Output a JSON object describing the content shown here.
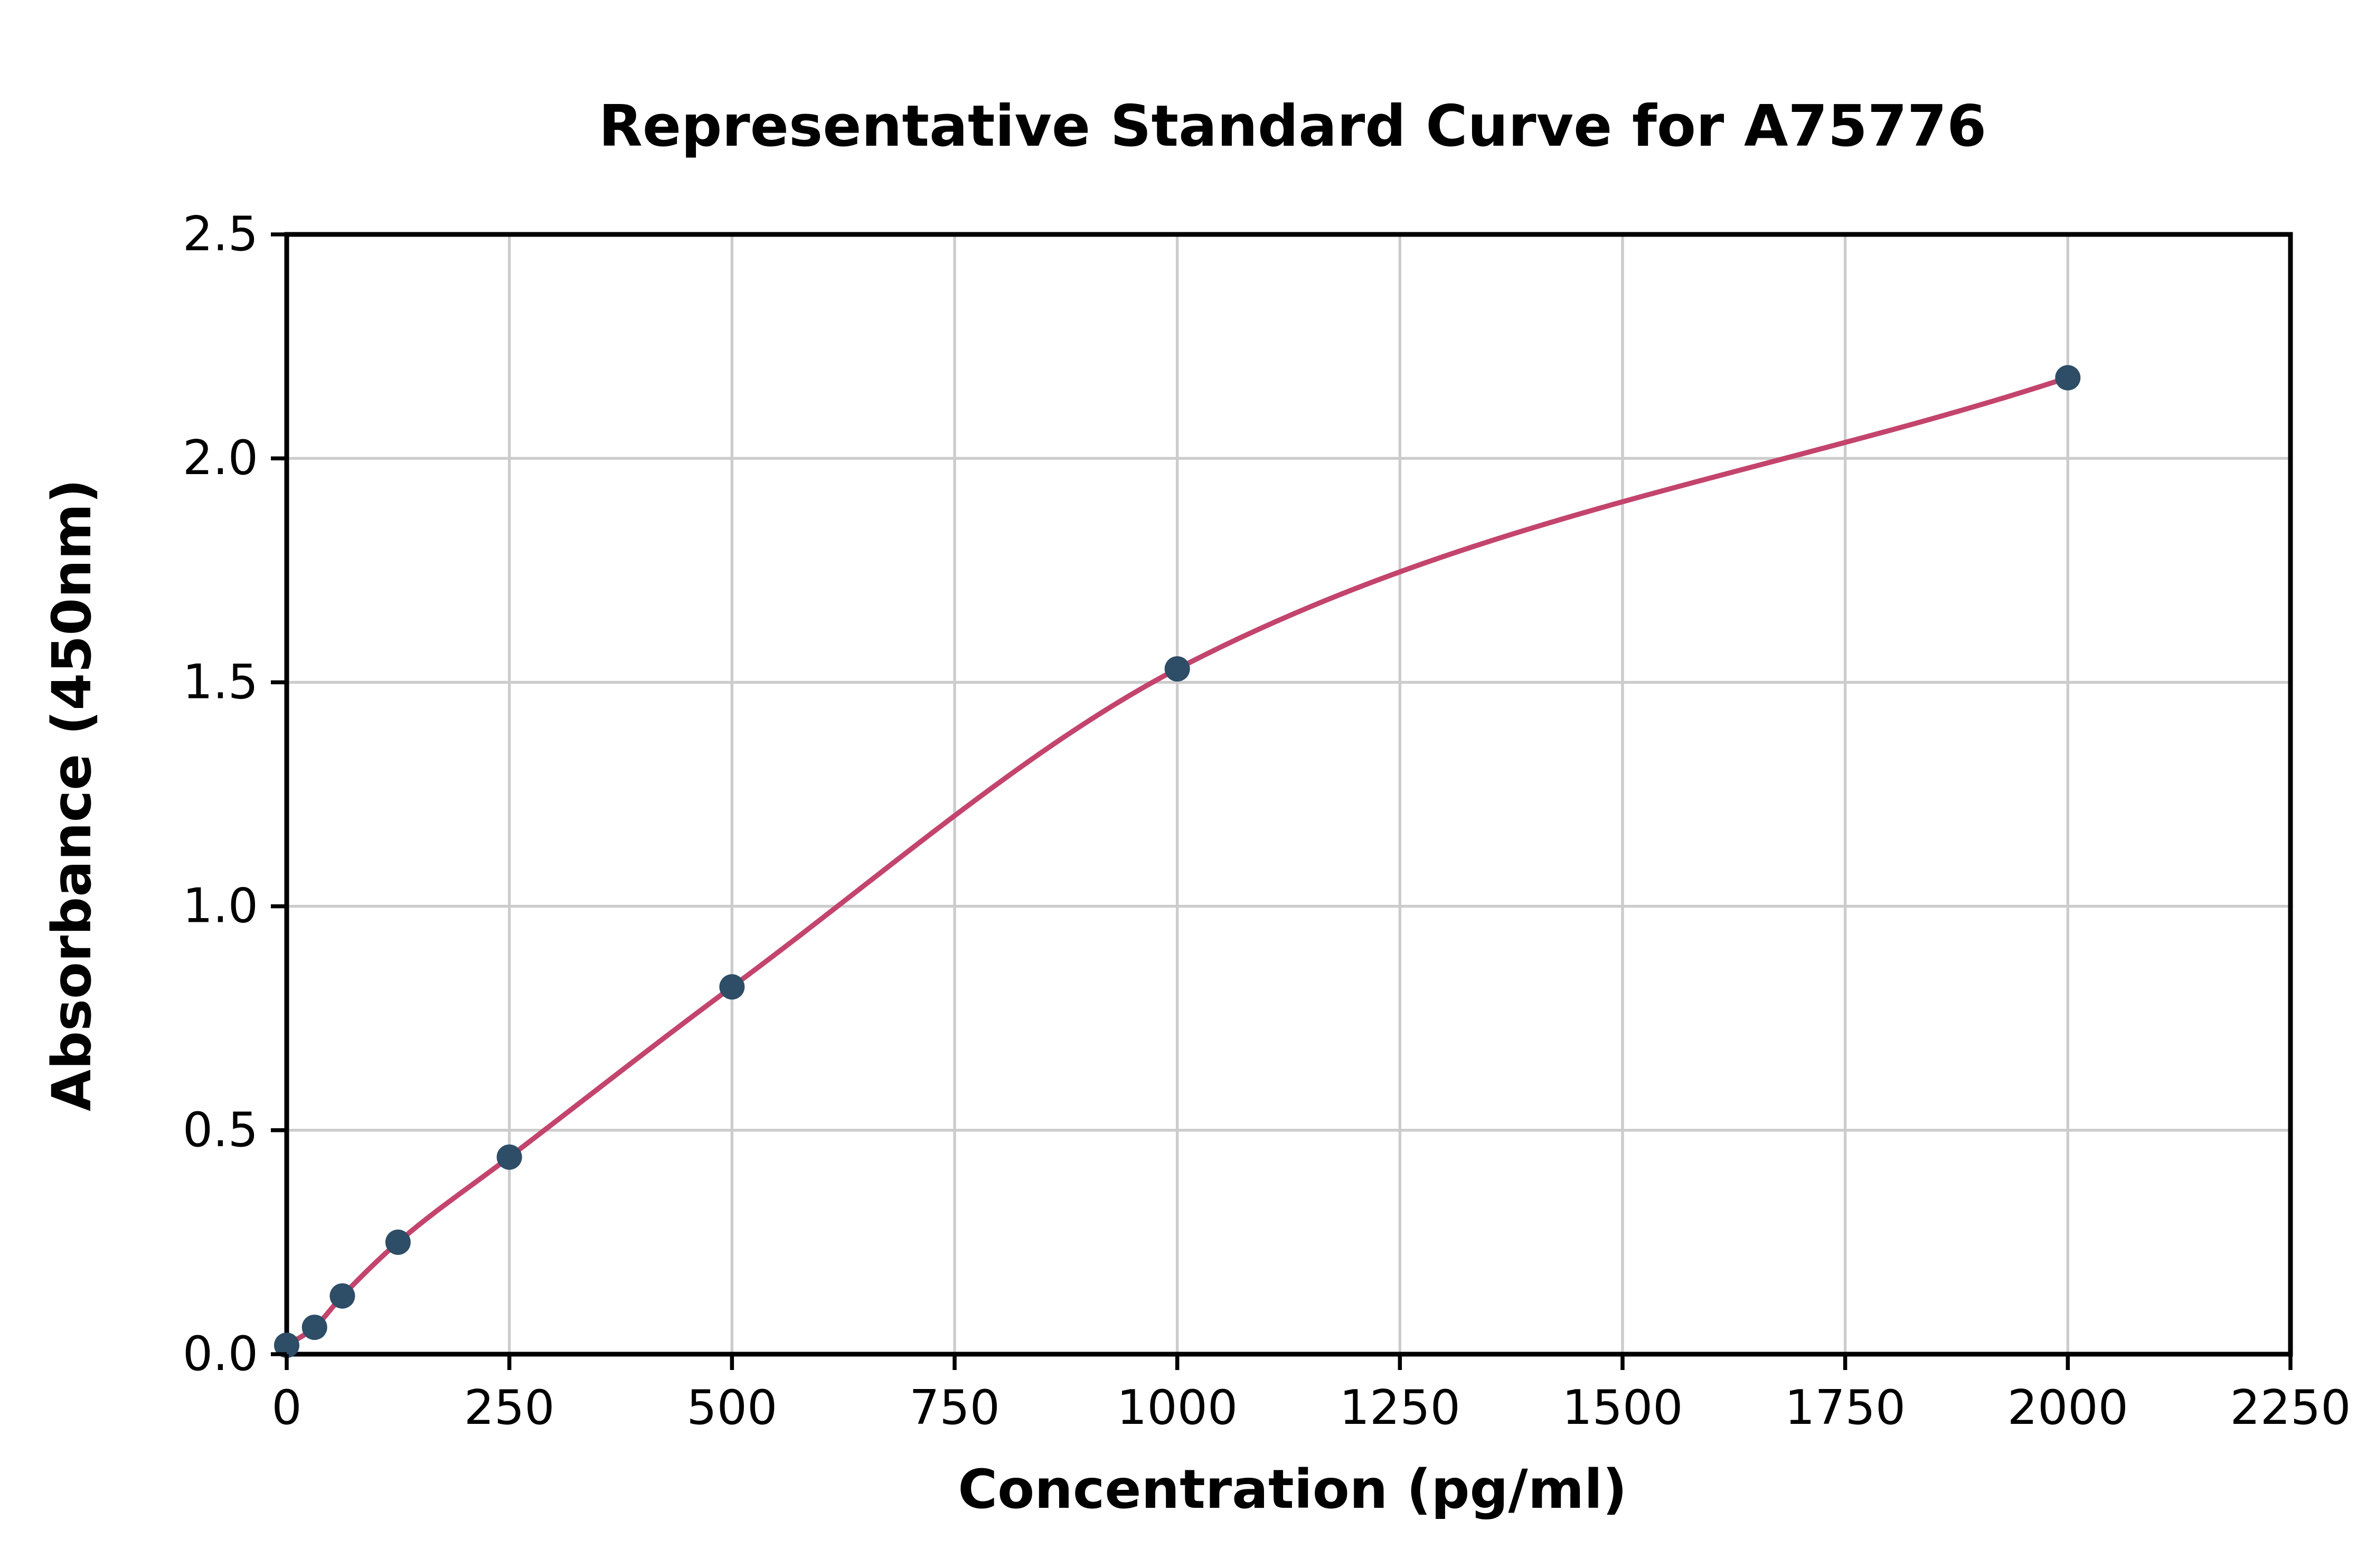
{
  "chart_data": {
    "type": "scatter",
    "title": "Representative Standard Curve for A75776",
    "xlabel": "Concentration (pg/ml)",
    "ylabel": "Absorbance (450nm)",
    "xlim": [
      0,
      2250
    ],
    "ylim": [
      0,
      2.5
    ],
    "xticks": [
      0,
      250,
      500,
      750,
      1000,
      1250,
      1500,
      1750,
      2000,
      2250
    ],
    "yticks": [
      0,
      0.5,
      1.0,
      1.5,
      2.0,
      2.5
    ],
    "xtick_labels": [
      "0",
      "250",
      "500",
      "750",
      "1000",
      "1250",
      "1500",
      "1750",
      "2000",
      "2250"
    ],
    "ytick_labels": [
      "0.0",
      "0.5",
      "1.0",
      "1.5",
      "2.0",
      "2.5"
    ],
    "grid": true,
    "legend_position": "none",
    "series": [
      {
        "name": "standard-curve",
        "points": [
          [
            0,
            0.02
          ],
          [
            31.25,
            0.06
          ],
          [
            62.5,
            0.13
          ],
          [
            125,
            0.25
          ],
          [
            250,
            0.44
          ],
          [
            500,
            0.82
          ],
          [
            1000,
            1.53
          ],
          [
            2000,
            2.18
          ]
        ]
      }
    ],
    "colors": {
      "point_color": "#2e4d66",
      "line_color": "#c3446c",
      "grid_color": "#cccccc",
      "axis_color": "#000000",
      "background": "#ffffff"
    }
  }
}
